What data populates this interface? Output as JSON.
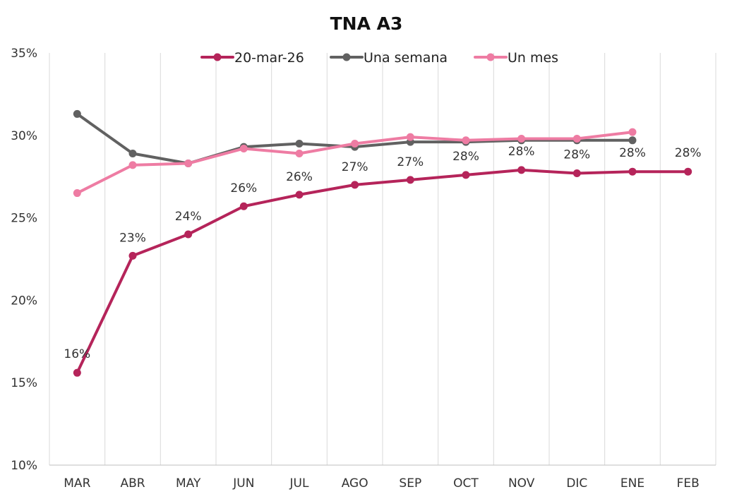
{
  "chart_data": {
    "type": "line",
    "title": "TNA A3",
    "xlabel": "",
    "ylabel": "",
    "ylim": [
      0.1,
      0.35
    ],
    "y_ticks": [
      "35%",
      "30%",
      "25%",
      "20%",
      "15%",
      "10%"
    ],
    "categories": [
      "MAR",
      "ABR",
      "MAY",
      "JUN",
      "JUL",
      "AGO",
      "SEP",
      "OCT",
      "NOV",
      "DIC",
      "ENE",
      "FEB"
    ],
    "legend_position": "top-center",
    "grid": "vertical",
    "series": [
      {
        "name": "20-mar-26",
        "color": "#B5245A",
        "values": [
          0.156,
          0.227,
          0.24,
          0.257,
          0.264,
          0.27,
          0.273,
          0.276,
          0.279,
          0.277,
          0.278,
          0.278
        ],
        "data_labels": [
          "16%",
          "23%",
          "24%",
          "26%",
          "26%",
          "27%",
          "27%",
          "28%",
          "28%",
          "28%",
          "28%",
          "28%"
        ]
      },
      {
        "name": "Una semana",
        "color": "#616161",
        "values": [
          0.313,
          0.289,
          0.283,
          0.293,
          0.295,
          0.293,
          0.296,
          0.296,
          0.297,
          0.297,
          0.297,
          null
        ]
      },
      {
        "name": "Un mes",
        "color": "#EE7CA3",
        "values": [
          0.265,
          0.282,
          0.283,
          0.292,
          0.289,
          0.295,
          0.299,
          0.297,
          0.298,
          0.298,
          0.302,
          null
        ]
      }
    ]
  }
}
